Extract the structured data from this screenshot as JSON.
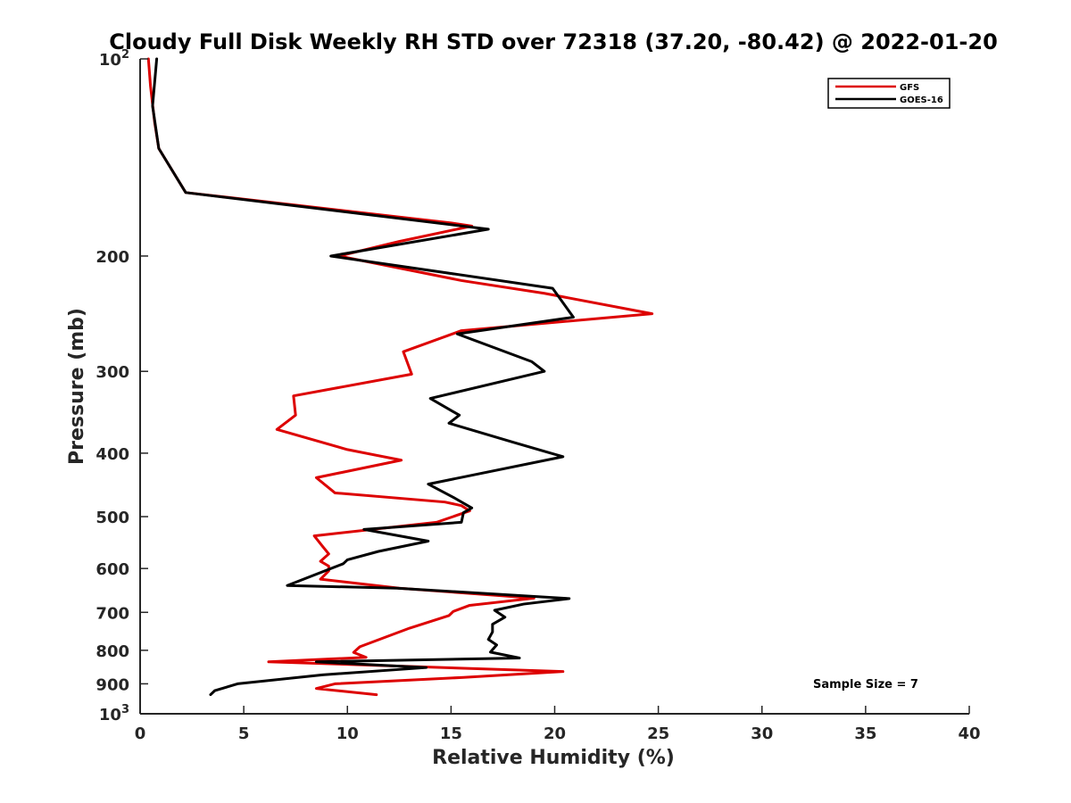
{
  "chart_data": {
    "type": "line",
    "title": "Cloudy Full Disk Weekly RH STD over 72318 (37.20, -80.42) @ 2022-01-20",
    "xlabel": "Relative Humidity (%)",
    "ylabel": "Pressure (mb)",
    "xlim": [
      0,
      40
    ],
    "ylim": [
      100,
      1000
    ],
    "y_scale": "log",
    "y_reversed": true,
    "x_ticks": [
      "0",
      "5",
      "10",
      "15",
      "20",
      "25",
      "30",
      "35",
      "40"
    ],
    "y_ticks": [
      {
        "value": 100,
        "base": "10",
        "exp": "2"
      },
      {
        "value": 200,
        "label": "200"
      },
      {
        "value": 300,
        "label": "300"
      },
      {
        "value": 400,
        "label": "400"
      },
      {
        "value": 500,
        "label": "500"
      },
      {
        "value": 600,
        "label": "600"
      },
      {
        "value": 700,
        "label": "700"
      },
      {
        "value": 800,
        "label": "800"
      },
      {
        "value": 900,
        "label": "900"
      },
      {
        "value": 1000,
        "base": "10",
        "exp": "3"
      }
    ],
    "legend": {
      "position": "top-right",
      "entries": [
        "GFS",
        "GOES-16"
      ]
    },
    "annotation": "Sample Size = 7",
    "series": [
      {
        "name": "GFS",
        "color": "#dd0000",
        "points": [
          [
            0.4,
            100
          ],
          [
            0.5,
            110
          ],
          [
            0.7,
            125
          ],
          [
            0.9,
            137
          ],
          [
            2.2,
            160
          ],
          [
            15.0,
            178
          ],
          [
            16.0,
            180
          ],
          [
            12.5,
            190
          ],
          [
            9.6,
            200
          ],
          [
            15.5,
            218
          ],
          [
            19.5,
            228
          ],
          [
            24.7,
            245
          ],
          [
            15.5,
            260
          ],
          [
            12.7,
            280
          ],
          [
            13.1,
            303
          ],
          [
            7.4,
            327
          ],
          [
            7.5,
            350
          ],
          [
            6.6,
            368
          ],
          [
            10.0,
            395
          ],
          [
            12.6,
            410
          ],
          [
            8.5,
            436
          ],
          [
            9.4,
            460
          ],
          [
            14.7,
            475
          ],
          [
            15.5,
            481
          ],
          [
            15.9,
            490
          ],
          [
            14.3,
            510
          ],
          [
            8.4,
            535
          ],
          [
            8.8,
            555
          ],
          [
            9.1,
            570
          ],
          [
            8.7,
            585
          ],
          [
            9.1,
            595
          ],
          [
            9.1,
            605
          ],
          [
            8.7,
            623
          ],
          [
            12.5,
            643
          ],
          [
            19.0,
            666
          ],
          [
            15.9,
            683
          ],
          [
            15.1,
            698
          ],
          [
            14.9,
            708
          ],
          [
            13.0,
            740
          ],
          [
            10.6,
            790
          ],
          [
            10.3,
            806
          ],
          [
            10.9,
            820
          ],
          [
            6.2,
            833
          ],
          [
            20.4,
            862
          ],
          [
            15.6,
            880
          ],
          [
            9.4,
            900
          ],
          [
            8.5,
            915
          ],
          [
            11.4,
            935
          ]
        ]
      },
      {
        "name": "GOES-16",
        "color": "#000000",
        "points": [
          [
            0.8,
            100
          ],
          [
            0.6,
            118
          ],
          [
            0.9,
            137
          ],
          [
            2.2,
            160
          ],
          [
            16.8,
            182
          ],
          [
            9.2,
            200
          ],
          [
            19.9,
            224
          ],
          [
            20.9,
            248
          ],
          [
            15.3,
            263
          ],
          [
            18.9,
            290
          ],
          [
            19.5,
            300
          ],
          [
            14.0,
            330
          ],
          [
            15.4,
            350
          ],
          [
            14.9,
            360
          ],
          [
            18.0,
            385
          ],
          [
            20.4,
            405
          ],
          [
            13.9,
            446
          ],
          [
            15.1,
            467
          ],
          [
            16.0,
            485
          ],
          [
            15.6,
            493
          ],
          [
            15.5,
            510
          ],
          [
            10.8,
            523
          ],
          [
            13.9,
            545
          ],
          [
            11.5,
            565
          ],
          [
            10.0,
            582
          ],
          [
            9.8,
            590
          ],
          [
            7.1,
            637
          ],
          [
            12.4,
            643
          ],
          [
            20.7,
            667
          ],
          [
            18.5,
            680
          ],
          [
            17.1,
            695
          ],
          [
            17.6,
            712
          ],
          [
            17.0,
            730
          ],
          [
            17.0,
            750
          ],
          [
            16.8,
            770
          ],
          [
            17.2,
            785
          ],
          [
            16.9,
            805
          ],
          [
            18.3,
            822
          ],
          [
            8.5,
            833
          ],
          [
            13.8,
            850
          ],
          [
            8.8,
            872
          ],
          [
            4.7,
            900
          ],
          [
            3.6,
            922
          ],
          [
            3.4,
            935
          ]
        ]
      }
    ]
  }
}
